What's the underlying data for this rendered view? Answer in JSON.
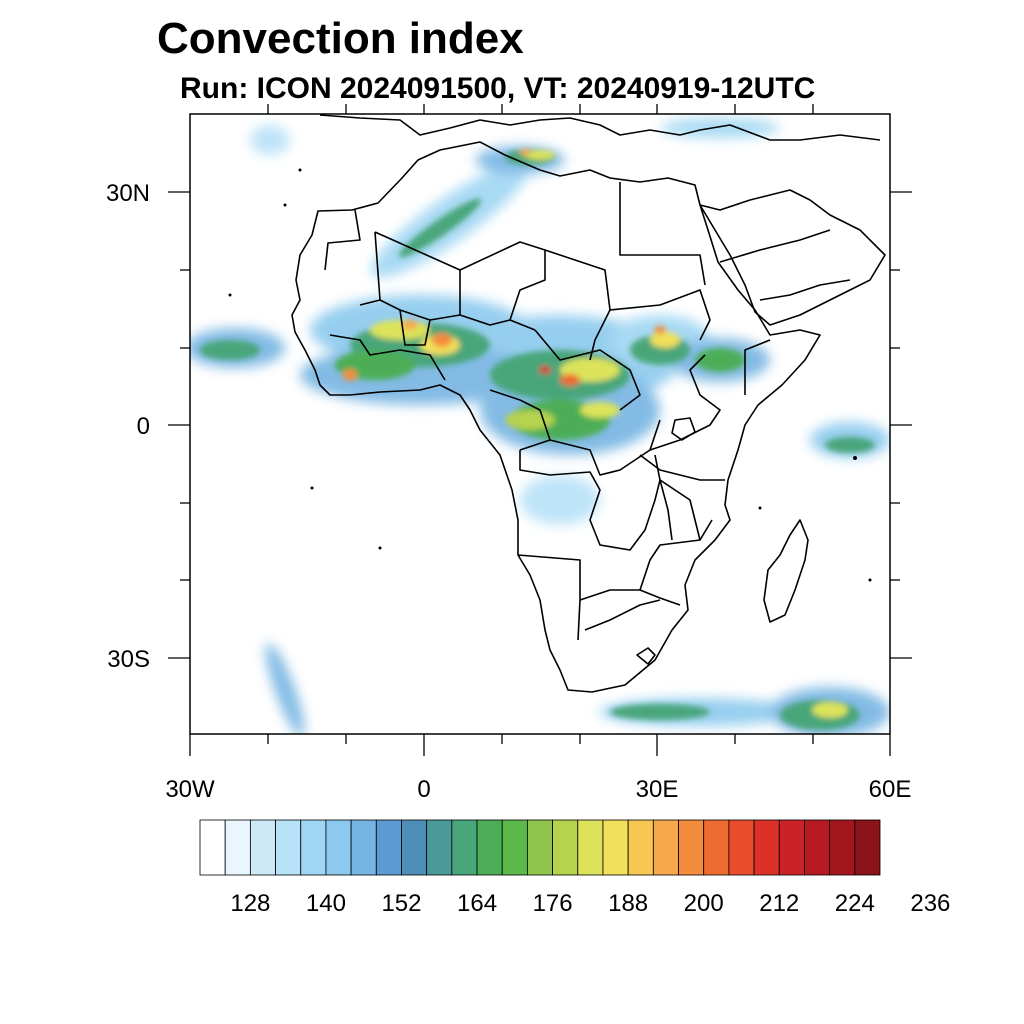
{
  "title": "Convection index",
  "subtitle": "Run: ICON 2024091500,  VT: 20240919-12UTC",
  "axes": {
    "lat_labels": [
      "30N",
      "0",
      "30S"
    ],
    "lon_labels": [
      "30W",
      "0",
      "30E",
      "60E"
    ]
  },
  "colorbar": {
    "colors": [
      "#ffffff",
      "#e9f6fd",
      "#cde9f8",
      "#b7e1f7",
      "#9fd6f3",
      "#8bc9ee",
      "#75b4e2",
      "#5d9ad4",
      "#4e8fba",
      "#4a9a9a",
      "#48a67a",
      "#4cae56",
      "#5db84a",
      "#90c44c",
      "#b6d24f",
      "#dce35a",
      "#f0e05a",
      "#f7c653",
      "#f6a94b",
      "#f48c3e",
      "#ee6b32",
      "#e84d2c",
      "#db3129",
      "#cc2227",
      "#b81a22",
      "#a4161e",
      "#8c131a"
    ],
    "tick_labels": [
      "128",
      "140",
      "152",
      "164",
      "176",
      "188",
      "200",
      "212",
      "224",
      "236"
    ]
  }
}
